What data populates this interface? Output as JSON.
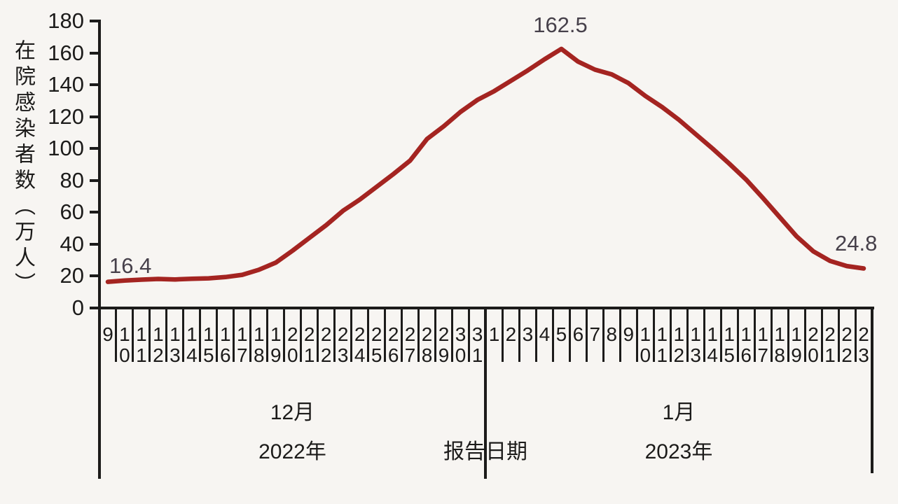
{
  "colors": {
    "background": "#f7f5f2",
    "axis": "#1c1b1a",
    "line": "#a42421",
    "annotation_text": "#46404a"
  },
  "chart_data": {
    "type": "line",
    "title": "",
    "y_axis_title": "在院感染者数（万人）",
    "x_axis_caption": "报告日期",
    "ylim": [
      0,
      180
    ],
    "y_ticks": [
      0,
      20,
      40,
      60,
      80,
      100,
      120,
      140,
      160,
      180
    ],
    "grid": false,
    "legend": "none",
    "periods": [
      {
        "month": "12月",
        "year": "2022年",
        "day_count": 23
      },
      {
        "month": "1月",
        "year": "2023年",
        "day_count": 23
      }
    ],
    "categories": [
      "9",
      "10",
      "11",
      "12",
      "13",
      "14",
      "15",
      "16",
      "17",
      "18",
      "19",
      "20",
      "21",
      "22",
      "23",
      "24",
      "25",
      "26",
      "27",
      "28",
      "29",
      "30",
      "31",
      "1",
      "2",
      "3",
      "4",
      "5",
      "6",
      "7",
      "8",
      "9",
      "10",
      "11",
      "12",
      "13",
      "14",
      "15",
      "16",
      "17",
      "18",
      "19",
      "20",
      "21",
      "22",
      "23"
    ],
    "values": [
      16.4,
      17.2,
      17.8,
      18.2,
      17.9,
      18.3,
      18.6,
      19.4,
      20.8,
      24,
      28.5,
      36,
      44,
      52,
      61,
      68,
      76,
      84,
      92.5,
      106,
      114,
      123,
      130.5,
      136,
      142.5,
      149,
      156,
      162.5,
      154.5,
      149.5,
      146.5,
      141,
      133,
      126,
      118,
      109,
      100,
      90.5,
      80.5,
      69,
      57,
      45,
      35.5,
      29.5,
      26.3,
      24.8
    ],
    "annotations": {
      "start": "16.4",
      "peak": "162.5",
      "end": "24.8"
    }
  }
}
